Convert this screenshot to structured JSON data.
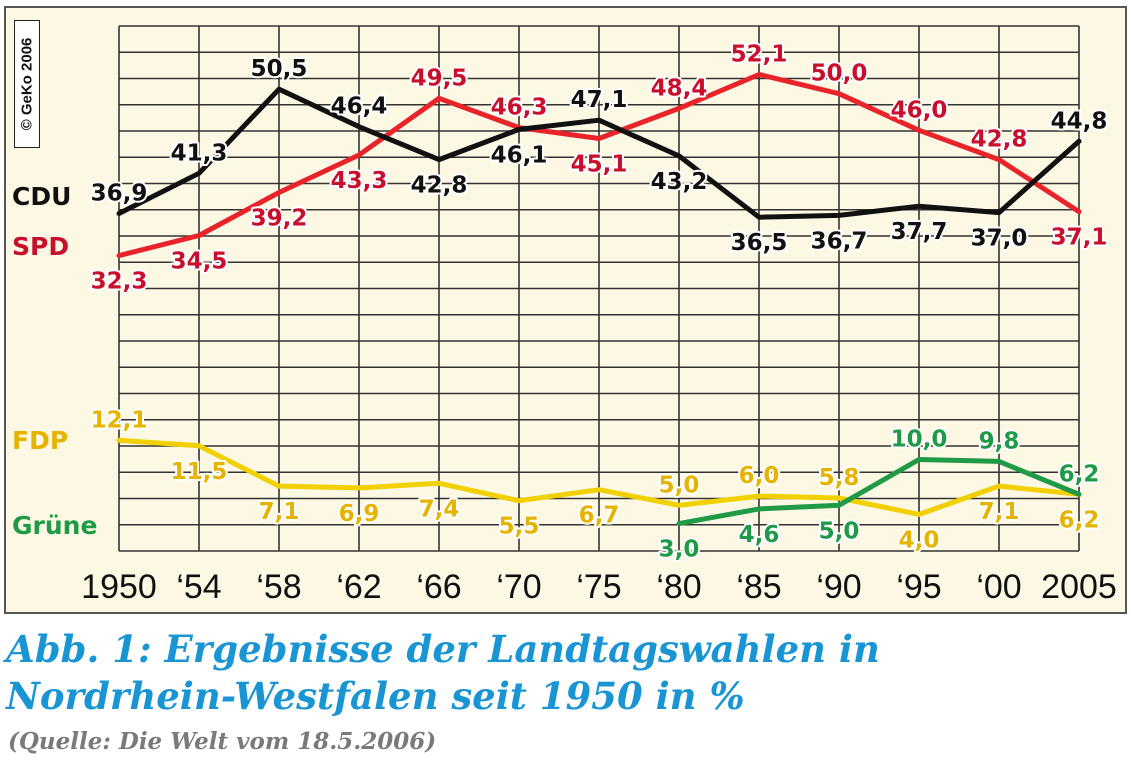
{
  "credit": "© GeKo 2006",
  "caption": {
    "title_line1": "Abb. 1: Ergebnisse der Landtagswahlen in",
    "title_line2": "Nordrhein-Westfalen seit 1950 in %",
    "source": "(Quelle: Die Welt vom 18.5.2006)"
  },
  "colors": {
    "CDU": "#111111",
    "SPD": "#e8242a",
    "FDP": "#f2d000",
    "Grüne": "#1f9a47",
    "background": "#fdf8e4"
  },
  "chart_data": {
    "type": "line",
    "title": "",
    "xlabel": "",
    "ylabel": "",
    "ylim": [
      0,
      55
    ],
    "grid": true,
    "categories": [
      "1950",
      "‘54",
      "‘58",
      "‘62",
      "‘66",
      "‘70",
      "‘75",
      "‘80",
      "‘85",
      "‘90",
      "‘95",
      "‘00",
      "2005"
    ],
    "series": [
      {
        "name": "CDU",
        "color": "#111111",
        "label_color": "#111111",
        "values": [
          36.9,
          41.3,
          50.5,
          46.4,
          42.8,
          46.1,
          47.1,
          43.2,
          36.5,
          36.7,
          37.7,
          37.0,
          44.8
        ],
        "labels": [
          "36,9",
          "41,3",
          "50,5",
          "46,4",
          "42,8",
          "46,1",
          "47,1",
          "43,2",
          "36,5",
          "36,7",
          "37,7",
          "37,0",
          "44,8"
        ],
        "label_pos": [
          "above",
          "above",
          "above",
          "above",
          "below",
          "below",
          "above",
          "below",
          "below",
          "below",
          "below",
          "below",
          "above"
        ]
      },
      {
        "name": "SPD",
        "color": "#e8242a",
        "label_color": "#c8102e",
        "values": [
          32.3,
          34.5,
          39.2,
          43.3,
          49.5,
          46.3,
          45.1,
          48.4,
          52.1,
          50.0,
          46.0,
          42.8,
          37.1
        ],
        "labels": [
          "32,3",
          "34,5",
          "39,2",
          "43,3",
          "49,5",
          "46,3",
          "45,1",
          "48,4",
          "52,1",
          "50,0",
          "46,0",
          "42,8",
          "37,1"
        ],
        "label_pos": [
          "below",
          "below",
          "below",
          "below",
          "above",
          "above",
          "below",
          "above",
          "above",
          "above",
          "above",
          "above",
          "below"
        ]
      },
      {
        "name": "FDP",
        "color": "#f2d000",
        "label_color": "#e6b400",
        "values": [
          12.1,
          11.5,
          7.1,
          6.9,
          7.4,
          5.5,
          6.7,
          5.0,
          6.0,
          5.8,
          4.0,
          7.1,
          6.2
        ],
        "labels": [
          "12,1",
          "11,5",
          "7,1",
          "6,9",
          "7,4",
          "5,5",
          "6,7",
          "5,0",
          "6,0",
          "5,8",
          "4,0",
          "7,1",
          "6,2"
        ],
        "label_pos": [
          "above",
          "below",
          "below",
          "below",
          "below",
          "below",
          "below",
          "above",
          "above",
          "above",
          "below",
          "below",
          "below"
        ]
      },
      {
        "name": "Grüne",
        "color": "#1f9a47",
        "label_color": "#1f9a47",
        "values": [
          null,
          null,
          null,
          null,
          null,
          null,
          null,
          3.0,
          4.6,
          5.0,
          10.0,
          9.8,
          6.2
        ],
        "labels": [
          "",
          "",
          "",
          "",
          "",
          "",
          "",
          "3,0",
          "4,6",
          "5,0",
          "10,0",
          "9,8",
          "6,2"
        ],
        "label_pos": [
          "",
          "",
          "",
          "",
          "",
          "",
          "",
          "below",
          "below",
          "below",
          "above",
          "above",
          "above"
        ]
      }
    ]
  }
}
